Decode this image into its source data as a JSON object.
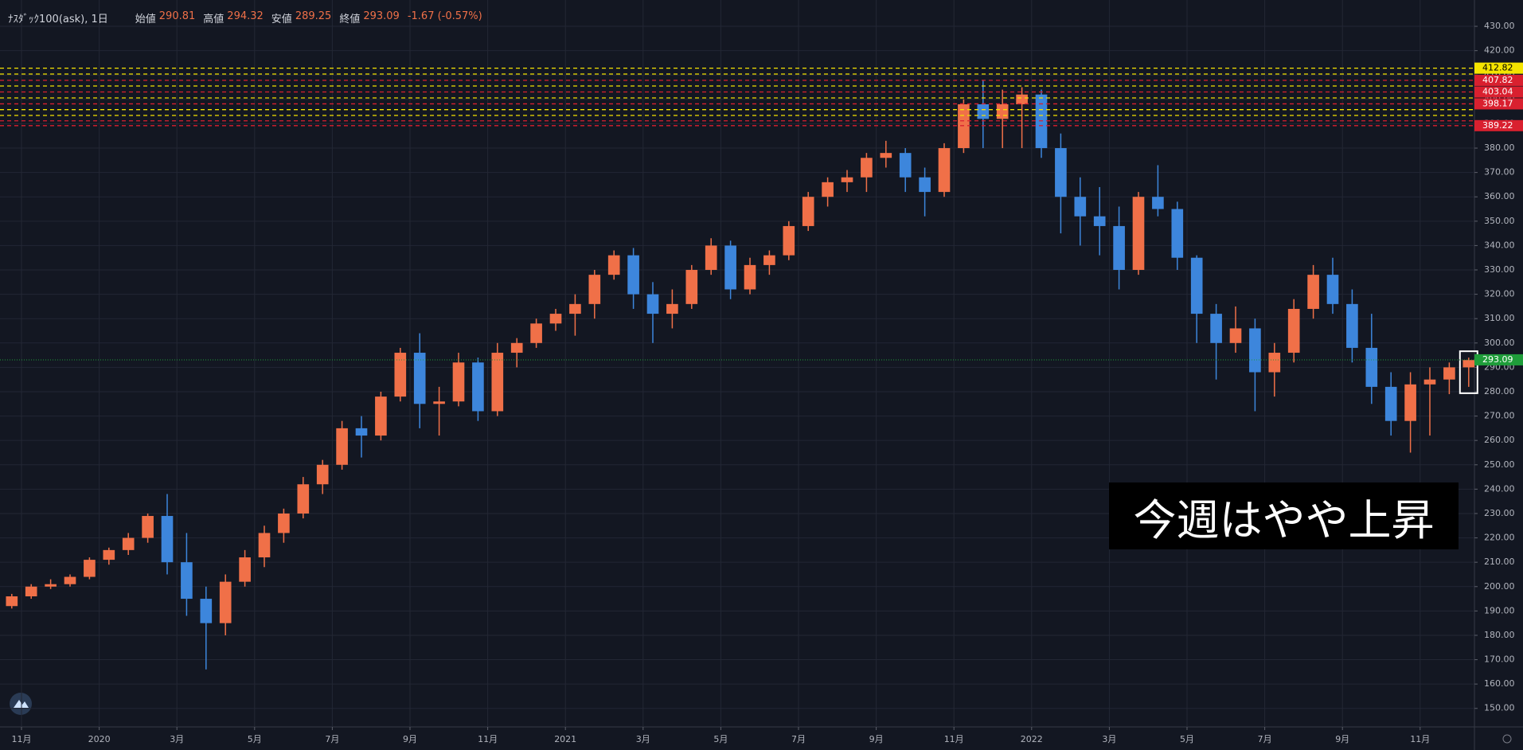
{
  "chart_data": {
    "type": "candlestick",
    "symbol": "ﾅｽﾀﾞｯｸ100(ask), 1日",
    "open_label": "始値",
    "open_value": 290.81,
    "high_label": "高値",
    "high_value": 294.32,
    "low_label": "安値",
    "low_value": 289.25,
    "close_label": "終値",
    "close_value": 293.09,
    "change": "-1.67 (-0.57%)",
    "annotation": "今週はやや上昇",
    "up_color": "#f07048",
    "down_color": "#3d86dc",
    "current_color": "#1f9d3a",
    "open": [
      192,
      196,
      200,
      201,
      204,
      211,
      215,
      220,
      229,
      210,
      195,
      185,
      202,
      212,
      222,
      230,
      242,
      250,
      265,
      262,
      278,
      296,
      275,
      276,
      292,
      272,
      296,
      300,
      308,
      312,
      316,
      328,
      336,
      320,
      312,
      316,
      330,
      340,
      322,
      332,
      336,
      348,
      360,
      366,
      368,
      376,
      378,
      368,
      362,
      380,
      398,
      392,
      398,
      402,
      380,
      360,
      352,
      348,
      330,
      360,
      355,
      335,
      312,
      300,
      306,
      288,
      296,
      314,
      328,
      316,
      298,
      282,
      268,
      283,
      285,
      290
    ],
    "high": [
      197,
      201,
      203,
      205,
      212,
      216,
      222,
      230,
      238,
      222,
      200,
      205,
      215,
      225,
      232,
      245,
      252,
      268,
      270,
      280,
      298,
      304,
      282,
      296,
      294,
      300,
      302,
      310,
      314,
      320,
      330,
      338,
      339,
      325,
      322,
      332,
      343,
      342,
      335,
      338,
      350,
      362,
      368,
      371,
      378,
      383,
      380,
      372,
      382,
      400,
      408,
      404,
      405,
      404,
      386,
      368,
      364,
      356,
      362,
      373,
      358,
      336,
      316,
      315,
      310,
      300,
      318,
      332,
      335,
      322,
      312,
      288,
      288,
      290,
      292,
      294
    ],
    "low": [
      191,
      195,
      199,
      200,
      203,
      209,
      213,
      218,
      205,
      188,
      166,
      180,
      200,
      208,
      218,
      228,
      238,
      248,
      253,
      260,
      276,
      265,
      262,
      274,
      268,
      270,
      290,
      298,
      305,
      303,
      310,
      326,
      314,
      300,
      306,
      314,
      328,
      318,
      320,
      328,
      334,
      346,
      356,
      362,
      362,
      372,
      362,
      352,
      360,
      378,
      380,
      380,
      380,
      376,
      345,
      340,
      336,
      322,
      328,
      352,
      330,
      300,
      285,
      296,
      272,
      278,
      292,
      310,
      312,
      292,
      275,
      262,
      255,
      262,
      279,
      282
    ],
    "close": [
      196,
      200,
      201,
      204,
      211,
      215,
      220,
      229,
      210,
      195,
      185,
      202,
      212,
      222,
      230,
      242,
      250,
      265,
      262,
      278,
      296,
      275,
      276,
      292,
      272,
      296,
      300,
      308,
      312,
      316,
      328,
      336,
      320,
      312,
      316,
      330,
      340,
      322,
      332,
      336,
      348,
      360,
      366,
      368,
      376,
      378,
      368,
      362,
      380,
      398,
      392,
      398,
      402,
      380,
      360,
      352,
      348,
      330,
      360,
      355,
      335,
      312,
      300,
      306,
      288,
      296,
      314,
      328,
      316,
      298,
      282,
      268,
      283,
      285,
      290,
      293
    ],
    "xticks": [
      {
        "value": 1,
        "label": "11月"
      },
      {
        "value": 5,
        "label": "2020"
      },
      {
        "value": 9,
        "label": "3月"
      },
      {
        "value": 13,
        "label": "5月"
      },
      {
        "value": 17,
        "label": "7月"
      },
      {
        "value": 21,
        "label": "9月"
      },
      {
        "value": 25,
        "label": "11月"
      },
      {
        "value": 29,
        "label": "2021"
      },
      {
        "value": 33,
        "label": "3月"
      },
      {
        "value": 37,
        "label": "5月"
      },
      {
        "value": 41,
        "label": "7月"
      },
      {
        "value": 45,
        "label": "9月"
      },
      {
        "value": 49,
        "label": "11月"
      },
      {
        "value": 53,
        "label": "2022"
      },
      {
        "value": 57,
        "label": "3月"
      },
      {
        "value": 61,
        "label": "5月"
      },
      {
        "value": 65,
        "label": "7月"
      },
      {
        "value": 69,
        "label": "9月"
      },
      {
        "value": 73,
        "label": "11月"
      }
    ],
    "ylim": [
      142.4,
      440.8
    ],
    "yticks": [
      {
        "value": 150,
        "label": "150.00"
      },
      {
        "value": 160,
        "label": "160.00"
      },
      {
        "value": 170,
        "label": "170.00"
      },
      {
        "value": 180,
        "label": "180.00"
      },
      {
        "value": 190,
        "label": "190.00"
      },
      {
        "value": 200,
        "label": "200.00"
      },
      {
        "value": 210,
        "label": "210.00"
      },
      {
        "value": 220,
        "label": "220.00"
      },
      {
        "value": 230,
        "label": "230.00"
      },
      {
        "value": 240,
        "label": "240.00"
      },
      {
        "value": 250,
        "label": "250.00"
      },
      {
        "value": 260,
        "label": "260.00"
      },
      {
        "value": 270,
        "label": "270.00"
      },
      {
        "value": 280,
        "label": "280.00"
      },
      {
        "value": 290,
        "label": "290.00"
      },
      {
        "value": 300,
        "label": "300.00"
      },
      {
        "value": 310,
        "label": "310.00"
      },
      {
        "value": 320,
        "label": "320.00"
      },
      {
        "value": 330,
        "label": "330.00"
      },
      {
        "value": 340,
        "label": "340.00"
      },
      {
        "value": 350,
        "label": "350.00"
      },
      {
        "value": 360,
        "label": "360.00"
      },
      {
        "value": 370,
        "label": "370.00"
      },
      {
        "value": 380,
        "label": "380.00"
      },
      {
        "value": 390,
        "label": "390.00"
      },
      {
        "value": 400,
        "label": "400.00"
      },
      {
        "value": 410,
        "label": "410.00"
      },
      {
        "value": 420,
        "label": "420.00"
      },
      {
        "value": 430,
        "label": "430.00"
      }
    ],
    "grid": true,
    "levels": [
      {
        "value": 412.82,
        "color": "#f5e400",
        "labeled": true
      },
      {
        "value": 410.4,
        "color": "#f5e400"
      },
      {
        "value": 407.82,
        "color": "#d9202f",
        "labeled": true
      },
      {
        "value": 405.5,
        "color": "#f5e400"
      },
      {
        "value": 403.04,
        "color": "#d9202f",
        "labeled": true
      },
      {
        "value": 400.6,
        "color": "#f5e400"
      },
      {
        "value": 398.17,
        "color": "#d9202f",
        "labeled": true
      },
      {
        "value": 395.8,
        "color": "#f5e400"
      },
      {
        "value": 393.4,
        "color": "#f5e400"
      },
      {
        "value": 391.2,
        "color": "#d9202f"
      },
      {
        "value": 389.22,
        "color": "#d9202f",
        "labeled": true
      }
    ]
  }
}
